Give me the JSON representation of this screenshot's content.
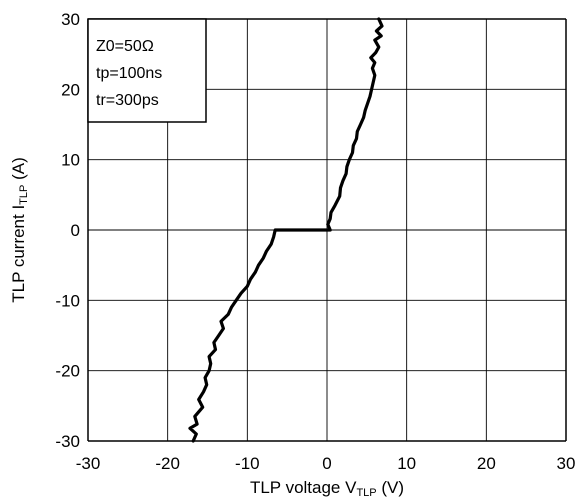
{
  "chart_data": {
    "type": "line",
    "title": "",
    "xlabel": {
      "main": "TLP voltage V",
      "sub": "TLP",
      "unit": " (V)"
    },
    "ylabel": {
      "main": "TLP current I",
      "sub": "TLP",
      "unit": " (A)"
    },
    "xlim": [
      -30,
      30
    ],
    "ylim": [
      -30,
      30
    ],
    "xticks": [
      -30,
      -20,
      -10,
      0,
      10,
      20,
      30
    ],
    "yticks": [
      -30,
      -20,
      -10,
      0,
      10,
      20,
      30
    ],
    "xtick_labels": [
      "-30",
      "-20",
      "-10",
      "0",
      "10",
      "20",
      "30"
    ],
    "ytick_labels": [
      "-30",
      "-20",
      "-10",
      "0",
      "10",
      "20",
      "30"
    ],
    "grid": true,
    "annotations": [
      "Z0=50Ω",
      "tp=100ns",
      "tr=300ps"
    ],
    "line_color": "#000000",
    "series": [
      {
        "points": [
          [
            -16.8,
            -30
          ],
          [
            -16.4,
            -29.0
          ],
          [
            -17.2,
            -28.2
          ],
          [
            -16.3,
            -27.6
          ],
          [
            -16.6,
            -26.5
          ],
          [
            -15.6,
            -25.2
          ],
          [
            -16.1,
            -24.1
          ],
          [
            -15.5,
            -23.0
          ],
          [
            -15.1,
            -22.0
          ],
          [
            -15.3,
            -21.0
          ],
          [
            -14.8,
            -20.0
          ],
          [
            -14.6,
            -19.0
          ],
          [
            -14.8,
            -18.0
          ],
          [
            -14.0,
            -17.0
          ],
          [
            -14.2,
            -16.0
          ],
          [
            -13.6,
            -15.0
          ],
          [
            -13.0,
            -14.0
          ],
          [
            -13.3,
            -13.0
          ],
          [
            -12.4,
            -12.0
          ],
          [
            -12.0,
            -11.0
          ],
          [
            -11.4,
            -10.0
          ],
          [
            -10.8,
            -9.0
          ],
          [
            -10.0,
            -8.0
          ],
          [
            -9.6,
            -7.0
          ],
          [
            -9.0,
            -6.0
          ],
          [
            -8.6,
            -5.0
          ],
          [
            -8.0,
            -4.0
          ],
          [
            -7.6,
            -3.0
          ],
          [
            -7.0,
            -2.0
          ],
          [
            -6.7,
            -1.0
          ],
          [
            -6.5,
            0
          ],
          [
            -3.0,
            0
          ],
          [
            0.0,
            0
          ],
          [
            0.4,
            0
          ],
          [
            0.1,
            0.8
          ],
          [
            0.4,
            1.6
          ],
          [
            0.5,
            2.5
          ],
          [
            1.0,
            3.5
          ],
          [
            1.6,
            4.8
          ],
          [
            1.7,
            6.0
          ],
          [
            2.0,
            7.0
          ],
          [
            2.4,
            8.0
          ],
          [
            2.5,
            9.0
          ],
          [
            2.8,
            10.0
          ],
          [
            3.2,
            11.0
          ],
          [
            3.3,
            12.0
          ],
          [
            3.7,
            13.0
          ],
          [
            3.8,
            14.0
          ],
          [
            4.2,
            15.0
          ],
          [
            4.6,
            16.0
          ],
          [
            4.8,
            17.0
          ],
          [
            5.1,
            18.0
          ],
          [
            5.4,
            19.0
          ],
          [
            5.6,
            20.0
          ],
          [
            5.8,
            21.0
          ],
          [
            6.0,
            22.0
          ],
          [
            5.7,
            23.0
          ],
          [
            6.0,
            23.8
          ],
          [
            5.5,
            24.5
          ],
          [
            6.1,
            25.2
          ],
          [
            6.5,
            26.0
          ],
          [
            6.0,
            27.0
          ],
          [
            6.8,
            27.6
          ],
          [
            6.2,
            28.3
          ],
          [
            6.9,
            29.0
          ],
          [
            6.5,
            30.0
          ]
        ]
      }
    ]
  }
}
